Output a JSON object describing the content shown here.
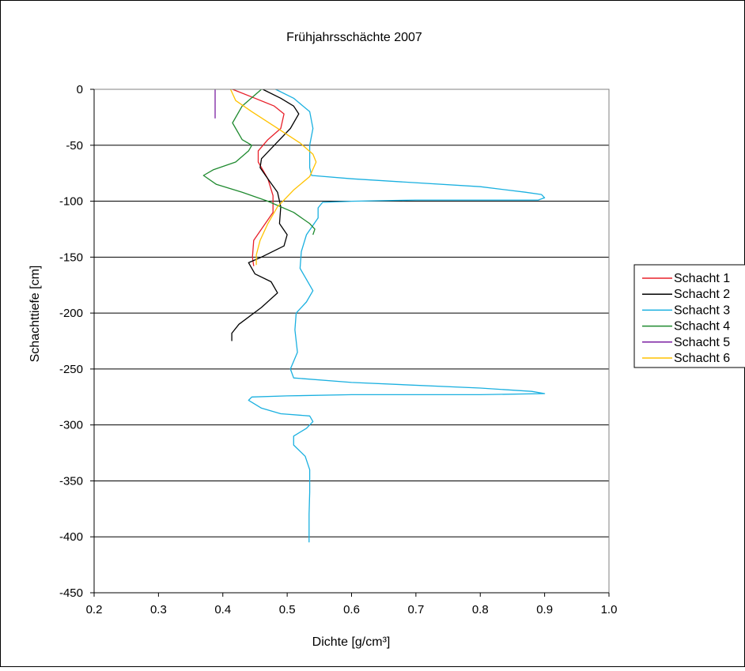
{
  "chart_data": {
    "type": "line",
    "title": "Frühjahrsschächte 2007",
    "xlabel": "Dichte [g/cm³]",
    "ylabel": "Schachttiefe [cm]",
    "xlim": [
      0.2,
      1.0
    ],
    "ylim": [
      -450,
      0
    ],
    "xticks": [
      0.2,
      0.3,
      0.4,
      0.5,
      0.6,
      0.7,
      0.8,
      0.9,
      1.0
    ],
    "xtick_labels": [
      "0.2",
      "0.3",
      "0.4",
      "0.5",
      "0.6",
      "0.7",
      "0.8",
      "0.9",
      "1.0"
    ],
    "yticks": [
      0,
      -50,
      -100,
      -150,
      -200,
      -250,
      -300,
      -350,
      -400,
      -450
    ],
    "ytick_labels": [
      "0",
      "-50",
      "-100",
      "-150",
      "-200",
      "-250",
      "-300",
      "-350",
      "-400",
      "-450"
    ],
    "grid": "horizontal",
    "legend_position": "right",
    "series": [
      {
        "name": "Schacht 1",
        "color": "#e8202a",
        "points": [
          [
            0.415,
            0
          ],
          [
            0.45,
            -8
          ],
          [
            0.48,
            -15
          ],
          [
            0.495,
            -22
          ],
          [
            0.49,
            -35
          ],
          [
            0.47,
            -45
          ],
          [
            0.455,
            -55
          ],
          [
            0.455,
            -65
          ],
          [
            0.47,
            -80
          ],
          [
            0.478,
            -95
          ],
          [
            0.478,
            -110
          ],
          [
            0.46,
            -125
          ],
          [
            0.448,
            -135
          ],
          [
            0.446,
            -150
          ],
          [
            0.448,
            -158
          ]
        ]
      },
      {
        "name": "Schacht 2",
        "color": "#000000",
        "points": [
          [
            0.462,
            0
          ],
          [
            0.49,
            -8
          ],
          [
            0.51,
            -15
          ],
          [
            0.518,
            -22
          ],
          [
            0.505,
            -35
          ],
          [
            0.48,
            -50
          ],
          [
            0.46,
            -62
          ],
          [
            0.458,
            -70
          ],
          [
            0.47,
            -80
          ],
          [
            0.485,
            -92
          ],
          [
            0.49,
            -105
          ],
          [
            0.488,
            -120
          ],
          [
            0.5,
            -130
          ],
          [
            0.495,
            -140
          ],
          [
            0.46,
            -150
          ],
          [
            0.44,
            -155
          ],
          [
            0.45,
            -165
          ],
          [
            0.475,
            -172
          ],
          [
            0.485,
            -182
          ],
          [
            0.46,
            -195
          ],
          [
            0.425,
            -210
          ],
          [
            0.414,
            -218
          ],
          [
            0.414,
            -225
          ]
        ]
      },
      {
        "name": "Schacht 3",
        "color": "#1ab0e0",
        "points": [
          [
            0.482,
            0
          ],
          [
            0.51,
            -8
          ],
          [
            0.535,
            -20
          ],
          [
            0.54,
            -35
          ],
          [
            0.535,
            -50
          ],
          [
            0.535,
            -70
          ],
          [
            0.538,
            -77
          ],
          [
            0.6,
            -80
          ],
          [
            0.8,
            -87
          ],
          [
            0.87,
            -92
          ],
          [
            0.895,
            -94
          ],
          [
            0.9,
            -97
          ],
          [
            0.89,
            -99
          ],
          [
            0.7,
            -99
          ],
          [
            0.6,
            -100
          ],
          [
            0.555,
            -101
          ],
          [
            0.548,
            -106
          ],
          [
            0.548,
            -115
          ],
          [
            0.53,
            -130
          ],
          [
            0.522,
            -145
          ],
          [
            0.52,
            -160
          ],
          [
            0.53,
            -170
          ],
          [
            0.54,
            -180
          ],
          [
            0.53,
            -190
          ],
          [
            0.514,
            -200
          ],
          [
            0.512,
            -215
          ],
          [
            0.516,
            -235
          ],
          [
            0.505,
            -250
          ],
          [
            0.51,
            -258
          ],
          [
            0.6,
            -262
          ],
          [
            0.8,
            -267
          ],
          [
            0.88,
            -270
          ],
          [
            0.9,
            -272
          ],
          [
            0.8,
            -273
          ],
          [
            0.6,
            -273
          ],
          [
            0.5,
            -274
          ],
          [
            0.445,
            -275
          ],
          [
            0.44,
            -278
          ],
          [
            0.46,
            -285
          ],
          [
            0.49,
            -290
          ],
          [
            0.535,
            -292
          ],
          [
            0.54,
            -297
          ],
          [
            0.53,
            -303
          ],
          [
            0.51,
            -310
          ],
          [
            0.51,
            -318
          ],
          [
            0.528,
            -328
          ],
          [
            0.535,
            -340
          ],
          [
            0.535,
            -360
          ],
          [
            0.534,
            -380
          ],
          [
            0.534,
            -400
          ],
          [
            0.534,
            -405
          ]
        ]
      },
      {
        "name": "Schacht 4",
        "color": "#1f8a2f",
        "points": [
          [
            0.46,
            0
          ],
          [
            0.45,
            -5
          ],
          [
            0.43,
            -15
          ],
          [
            0.415,
            -30
          ],
          [
            0.43,
            -45
          ],
          [
            0.445,
            -50
          ],
          [
            0.44,
            -55
          ],
          [
            0.42,
            -65
          ],
          [
            0.385,
            -72
          ],
          [
            0.37,
            -77
          ],
          [
            0.39,
            -85
          ],
          [
            0.43,
            -92
          ],
          [
            0.47,
            -100
          ],
          [
            0.51,
            -110
          ],
          [
            0.535,
            -120
          ],
          [
            0.543,
            -125
          ],
          [
            0.54,
            -130
          ]
        ]
      },
      {
        "name": "Schacht 5",
        "color": "#7b1fa2",
        "points": [
          [
            0.388,
            0
          ],
          [
            0.388,
            -26
          ]
        ]
      },
      {
        "name": "Schacht 6",
        "color": "#ffc200",
        "points": [
          [
            0.412,
            0
          ],
          [
            0.42,
            -10
          ],
          [
            0.445,
            -20
          ],
          [
            0.48,
            -33
          ],
          [
            0.52,
            -48
          ],
          [
            0.54,
            -58
          ],
          [
            0.545,
            -65
          ],
          [
            0.535,
            -78
          ],
          [
            0.51,
            -90
          ],
          [
            0.485,
            -105
          ],
          [
            0.47,
            -120
          ],
          [
            0.458,
            -135
          ],
          [
            0.452,
            -148
          ],
          [
            0.452,
            -157
          ]
        ]
      }
    ]
  }
}
